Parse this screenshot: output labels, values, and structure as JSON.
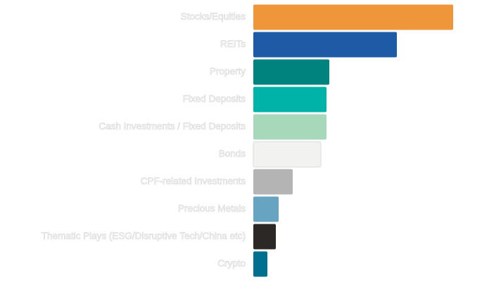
{
  "chart_data": {
    "type": "hbar",
    "categories": [
      "Stocks/Equities",
      "REITs",
      "Property",
      "Fixed Deposits",
      "Cash Investments / Fixed Deposits",
      "Bonds",
      "CPF-related Investments",
      "Precious Metals",
      "Thematic Plays (ESG/Disruptive Tech/China etc)",
      "Crypto"
    ],
    "values": [
      284,
      204,
      108,
      104,
      104,
      96,
      56,
      36,
      32,
      20
    ],
    "colors": [
      "#f0963a",
      "#1f5aa6",
      "#00827f",
      "#00b3a8",
      "#a6d8b9",
      "#f2f2f0",
      "#b4b4b4",
      "#66a4c1",
      "#2b2826",
      "#006f90"
    ],
    "xlim": [
      0,
      300
    ]
  }
}
